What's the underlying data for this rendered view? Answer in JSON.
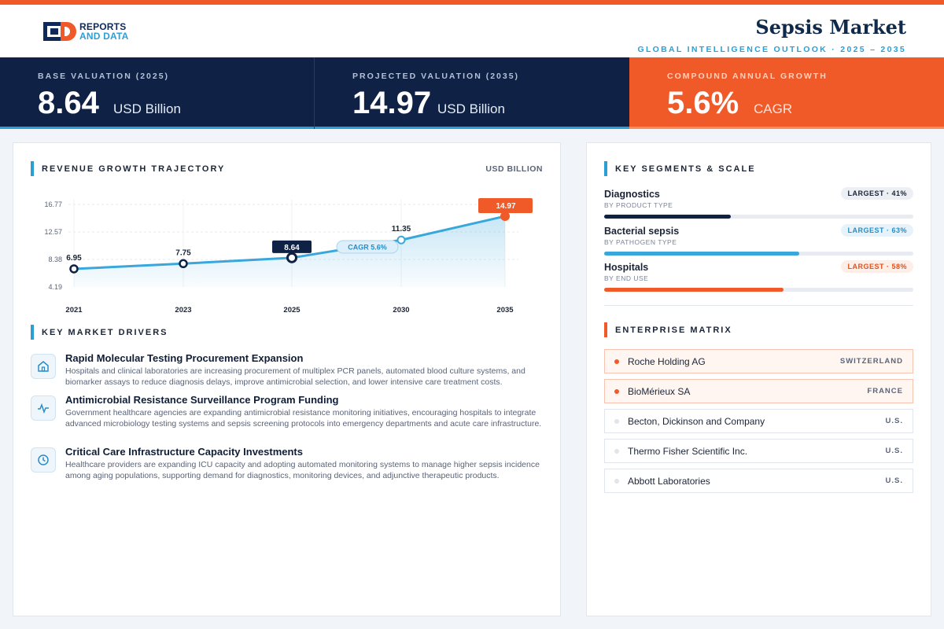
{
  "header": {
    "logo_line1": "REPORTS",
    "logo_line2": "AND DATA",
    "title": "Sepsis Market",
    "subtitle": "GLOBAL INTELLIGENCE OUTLOOK  ·  2025 – 2035"
  },
  "kpis": [
    {
      "label": "BASE VALUATION (2025)",
      "value": "8.64",
      "unit": "USD Billion"
    },
    {
      "label": "PROJECTED VALUATION (2035)",
      "value": "14.97",
      "unit": "USD Billion"
    },
    {
      "label": "COMPOUND ANNUAL GROWTH",
      "value": "5.6%",
      "unit": "CAGR"
    }
  ],
  "trajectory": {
    "heading": "REVENUE GROWTH TRAJECTORY",
    "unit_label": "USD BILLION",
    "cagr_label": "CAGR 5.6%"
  },
  "chart_data": {
    "type": "line",
    "x": [
      "2021",
      "2023",
      "2025",
      "2030",
      "2035"
    ],
    "values": [
      6.95,
      7.75,
      8.64,
      11.35,
      14.97
    ],
    "data_labels": [
      "6.95",
      "7.75",
      "8.64",
      "11.35",
      "14.97"
    ],
    "y_ticks": [
      4.19,
      8.38,
      12.57,
      16.77
    ],
    "y_tick_labels": [
      "4.19",
      "8.38",
      "12.57",
      "16.77"
    ],
    "ylim": [
      4.19,
      16.77
    ],
    "grid": true,
    "area_fill": true,
    "colors": {
      "line": "#3aa7dc",
      "highlight": "#f05a28",
      "base_marker": "#0f2144"
    }
  },
  "drivers": {
    "heading": "KEY MARKET DRIVERS",
    "items": [
      {
        "icon": "building-icon",
        "title": "Rapid Molecular Testing Procurement Expansion",
        "body": "Hospitals and clinical laboratories are increasing procurement of multiplex PCR panels, automated blood culture systems, and biomarker assays to reduce diagnosis delays, improve antimicrobial selection, and lower intensive care treatment costs."
      },
      {
        "icon": "pulse-icon",
        "title": "Antimicrobial Resistance Surveillance Program Funding",
        "body": "Government healthcare agencies are expanding antimicrobial resistance monitoring initiatives, encouraging hospitals to integrate advanced microbiology testing systems and sepsis screening protocols into emergency departments and acute care infrastructure."
      },
      {
        "icon": "clock-icon",
        "title": "Critical Care Infrastructure Capacity Investments",
        "body": "Healthcare providers are expanding ICU capacity and adopting automated monitoring systems to manage higher sepsis incidence among aging populations, supporting demand for diagnostics, monitoring devices, and adjunctive therapeutic products."
      }
    ]
  },
  "segments": {
    "heading": "KEY SEGMENTS & SCALE",
    "items": [
      {
        "name": "Diagnostics",
        "sub": "BY PRODUCT TYPE",
        "badge": "LARGEST · 41%",
        "share": 0.41,
        "color": "#0f2144",
        "badge_bg": "#eceff4",
        "badge_fg": "#1b2436"
      },
      {
        "name": "Bacterial sepsis",
        "sub": "BY PATHOGEN TYPE",
        "badge": "LARGEST · 63%",
        "share": 0.63,
        "color": "#3aa7dc",
        "badge_bg": "#e6f3fb",
        "badge_fg": "#2a8cc4"
      },
      {
        "name": "Hospitals",
        "sub": "BY END USE",
        "badge": "LARGEST · 58%",
        "share": 0.58,
        "color": "#f05a28",
        "badge_bg": "#fdeee8",
        "badge_fg": "#e0521f"
      }
    ]
  },
  "enterprise": {
    "heading": "ENTERPRISE MATRIX",
    "items": [
      {
        "name": "Roche Holding AG",
        "country": "SWITZERLAND",
        "highlight": true
      },
      {
        "name": "BioMérieux SA",
        "country": "FRANCE",
        "highlight": true
      },
      {
        "name": "Becton, Dickinson and Company",
        "country": "U.S.",
        "highlight": false
      },
      {
        "name": "Thermo Fisher Scientific Inc.",
        "country": "U.S.",
        "highlight": false
      },
      {
        "name": "Abbott Laboratories",
        "country": "U.S.",
        "highlight": false
      }
    ]
  }
}
